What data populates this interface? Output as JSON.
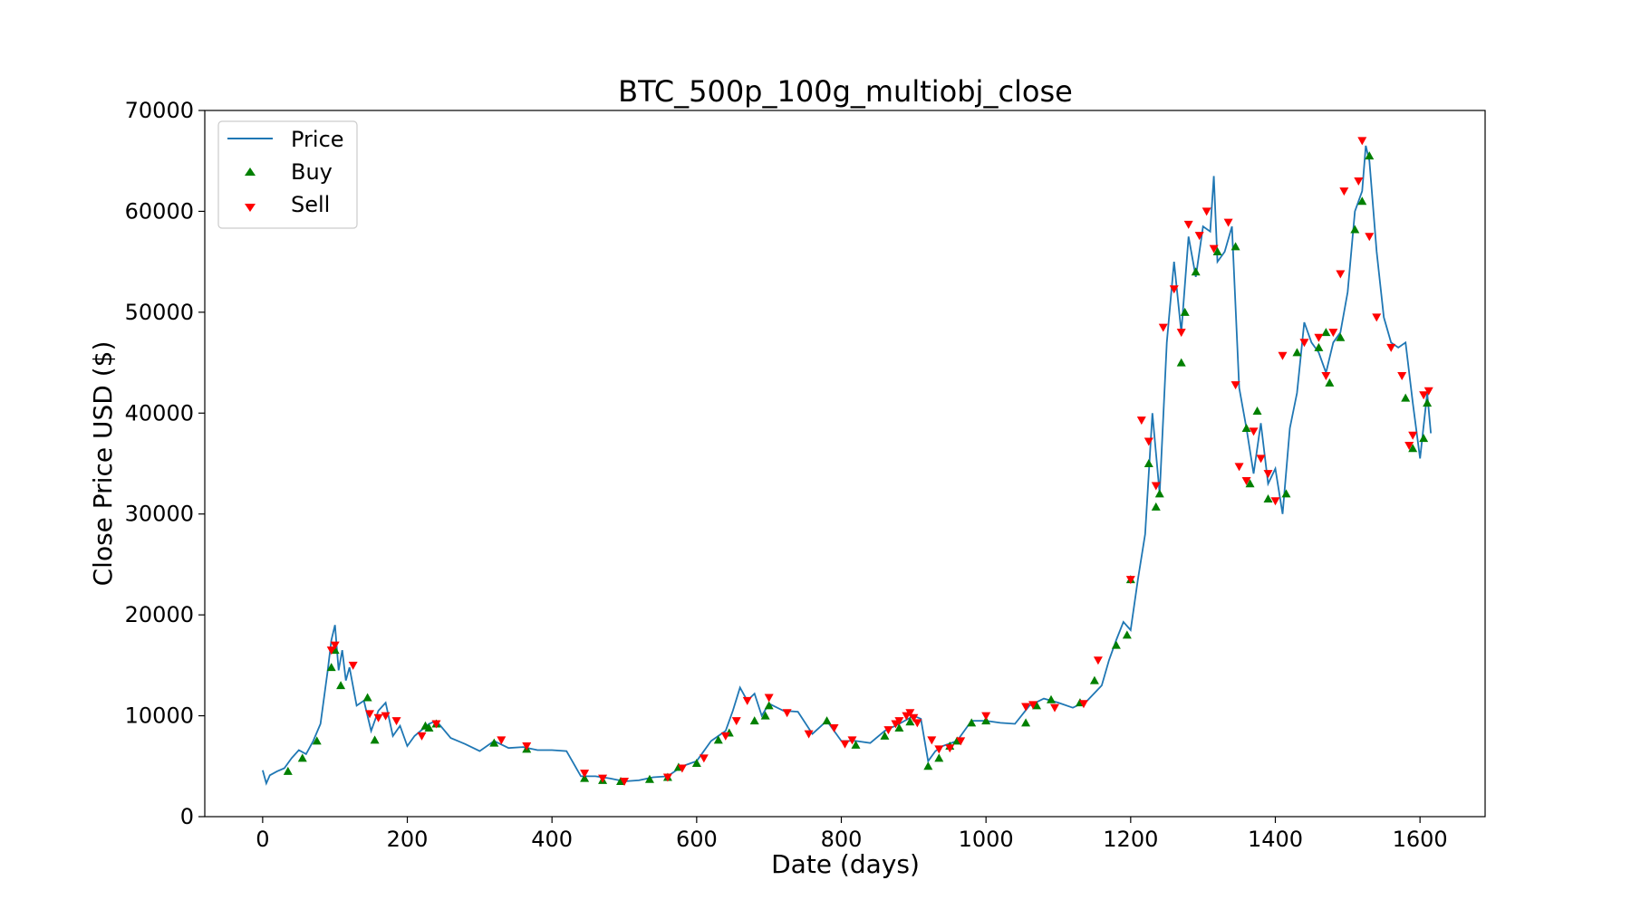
{
  "chart_data": {
    "type": "line",
    "title": "BTC_500p_100g_multiobj_close",
    "xlabel": "Date (days)",
    "ylabel": "Close Price USD ($)",
    "xlim": [
      -80,
      1690
    ],
    "ylim": [
      0,
      70000
    ],
    "x_ticks": [
      0,
      200,
      400,
      600,
      800,
      1000,
      1200,
      1400,
      1600
    ],
    "y_ticks": [
      0,
      10000,
      20000,
      30000,
      40000,
      50000,
      60000,
      70000
    ],
    "x_tick_labels": [
      "0",
      "200",
      "400",
      "600",
      "800",
      "1000",
      "1200",
      "1400",
      "1600"
    ],
    "y_tick_labels": [
      "0",
      "10000",
      "20000",
      "30000",
      "40000",
      "50000",
      "60000",
      "70000"
    ],
    "grid": false,
    "legend_position": "top-left",
    "legend": [
      "Price",
      "Buy",
      "Sell"
    ],
    "colors": {
      "price": "#1f77b4",
      "buy": "#008000",
      "sell": "#ff0000"
    },
    "price": {
      "name": "Price",
      "x": [
        0,
        5,
        10,
        20,
        30,
        40,
        50,
        60,
        70,
        80,
        90,
        95,
        100,
        105,
        110,
        115,
        120,
        130,
        140,
        150,
        160,
        170,
        180,
        190,
        200,
        210,
        220,
        230,
        240,
        260,
        280,
        300,
        320,
        340,
        360,
        380,
        400,
        420,
        440,
        460,
        480,
        500,
        520,
        540,
        560,
        580,
        600,
        620,
        640,
        650,
        660,
        670,
        680,
        690,
        700,
        720,
        740,
        760,
        780,
        800,
        820,
        840,
        860,
        880,
        900,
        910,
        920,
        930,
        940,
        960,
        980,
        1000,
        1020,
        1040,
        1060,
        1080,
        1100,
        1120,
        1140,
        1160,
        1170,
        1180,
        1190,
        1200,
        1210,
        1220,
        1230,
        1240,
        1250,
        1260,
        1270,
        1280,
        1290,
        1300,
        1310,
        1315,
        1320,
        1330,
        1340,
        1350,
        1360,
        1370,
        1380,
        1390,
        1400,
        1410,
        1420,
        1430,
        1440,
        1450,
        1460,
        1470,
        1480,
        1490,
        1500,
        1510,
        1520,
        1525,
        1530,
        1540,
        1550,
        1560,
        1570,
        1580,
        1590,
        1600,
        1610,
        1615
      ],
      "y": [
        4600,
        3300,
        4100,
        4500,
        4800,
        5800,
        6600,
        6200,
        7500,
        9200,
        14500,
        17500,
        19000,
        14500,
        16500,
        13500,
        14800,
        11000,
        11500,
        8500,
        10500,
        11300,
        8000,
        9000,
        7000,
        8000,
        8600,
        9200,
        9500,
        7800,
        7200,
        6500,
        7500,
        6800,
        6900,
        6600,
        6600,
        6500,
        4000,
        4000,
        3800,
        3500,
        3600,
        3900,
        4000,
        5000,
        5500,
        7500,
        8500,
        10500,
        12800,
        11500,
        12200,
        10000,
        11200,
        10500,
        10400,
        8200,
        9500,
        7500,
        7500,
        7300,
        8500,
        9200,
        10000,
        9700,
        5500,
        6500,
        7000,
        7500,
        9500,
        9500,
        9300,
        9200,
        11000,
        11700,
        11300,
        10800,
        11500,
        13000,
        15500,
        17500,
        19300,
        18500,
        23500,
        28000,
        40000,
        32000,
        47000,
        55000,
        48000,
        57500,
        53500,
        58500,
        58000,
        63500,
        55000,
        56000,
        58500,
        42500,
        38500,
        34000,
        39000,
        33000,
        34500,
        30000,
        38500,
        42000,
        49000,
        47000,
        46000,
        44000,
        47000,
        48000,
        52000,
        60000,
        62000,
        66500,
        65000,
        56000,
        49500,
        47000,
        46500,
        47000,
        41000,
        35500,
        42000,
        38000
      ]
    },
    "buy": {
      "name": "Buy",
      "x": [
        35,
        55,
        75,
        95,
        100,
        108,
        145,
        155,
        225,
        230,
        240,
        320,
        365,
        445,
        470,
        495,
        535,
        560,
        575,
        600,
        630,
        645,
        680,
        695,
        700,
        780,
        820,
        860,
        880,
        895,
        920,
        935,
        950,
        960,
        980,
        1000,
        1055,
        1070,
        1090,
        1130,
        1150,
        1180,
        1195,
        1200,
        1225,
        1235,
        1240,
        1270,
        1275,
        1290,
        1320,
        1345,
        1360,
        1365,
        1375,
        1390,
        1415,
        1430,
        1460,
        1470,
        1475,
        1490,
        1510,
        1520,
        1530,
        1580,
        1590,
        1605,
        1610
      ],
      "y": [
        4500,
        5800,
        7500,
        14800,
        16500,
        13000,
        11800,
        7600,
        9000,
        8800,
        9200,
        7300,
        6700,
        3800,
        3600,
        3500,
        3700,
        3900,
        4900,
        5300,
        7600,
        8300,
        9500,
        10000,
        11000,
        9500,
        7100,
        8000,
        8800,
        9400,
        5000,
        5800,
        7000,
        7500,
        9300,
        9500,
        9300,
        11000,
        11600,
        11300,
        13500,
        17000,
        18000,
        23500,
        35000,
        30700,
        32000,
        45000,
        50000,
        54000,
        56000,
        56500,
        38500,
        33000,
        40200,
        31500,
        32000,
        46000,
        46500,
        48000,
        43000,
        47500,
        58200,
        61000,
        65500,
        41500,
        36500,
        37500,
        41000
      ]
    },
    "sell": {
      "name": "Sell",
      "x": [
        95,
        100,
        125,
        148,
        160,
        170,
        185,
        220,
        240,
        330,
        365,
        445,
        470,
        500,
        560,
        580,
        610,
        640,
        655,
        670,
        700,
        725,
        755,
        790,
        805,
        815,
        865,
        875,
        880,
        890,
        895,
        900,
        905,
        925,
        935,
        950,
        965,
        1000,
        1055,
        1065,
        1095,
        1135,
        1155,
        1200,
        1215,
        1225,
        1235,
        1245,
        1260,
        1270,
        1280,
        1295,
        1305,
        1315,
        1335,
        1345,
        1350,
        1360,
        1370,
        1380,
        1390,
        1400,
        1410,
        1440,
        1460,
        1470,
        1480,
        1490,
        1495,
        1515,
        1520,
        1530,
        1540,
        1560,
        1575,
        1585,
        1590,
        1605,
        1612
      ],
      "y": [
        16500,
        17000,
        15000,
        10200,
        9800,
        10000,
        9500,
        8000,
        9200,
        7600,
        7000,
        4300,
        3800,
        3500,
        3900,
        4800,
        5800,
        8000,
        9500,
        11500,
        11800,
        10300,
        8200,
        8800,
        7200,
        7600,
        8600,
        9200,
        9500,
        10000,
        10300,
        9800,
        9300,
        7600,
        6700,
        6800,
        7500,
        10000,
        10900,
        11100,
        10800,
        11200,
        15500,
        23500,
        39300,
        37200,
        32800,
        48500,
        52300,
        48000,
        58700,
        57600,
        60000,
        56300,
        58900,
        42800,
        34700,
        33300,
        38200,
        35500,
        34000,
        31300,
        45700,
        47000,
        47500,
        43700,
        48000,
        53800,
        62000,
        63000,
        67000,
        57500,
        49500,
        46500,
        43700,
        36800,
        37800,
        41800,
        42200
      ]
    }
  }
}
